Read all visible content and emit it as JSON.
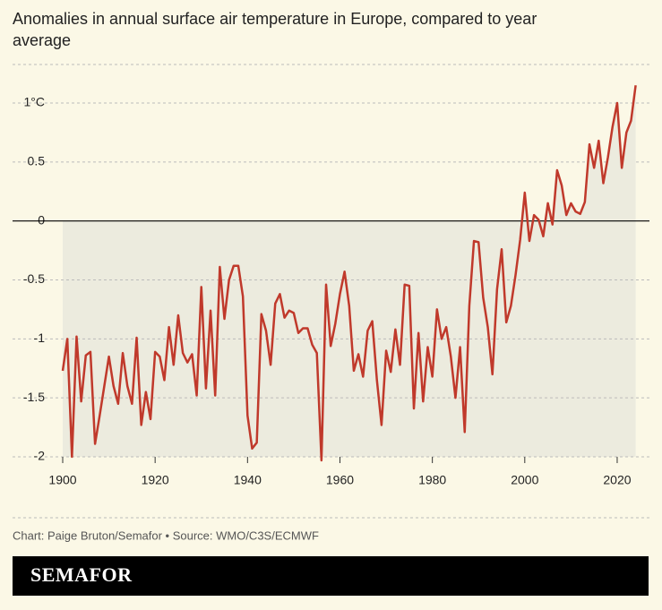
{
  "chart_data": {
    "type": "line",
    "title": "Anomalies in annual surface air temperature in Europe, compared to year",
    "subtitle": "average",
    "x": [
      1900,
      1901,
      1902,
      1903,
      1904,
      1905,
      1906,
      1907,
      1908,
      1909,
      1910,
      1911,
      1912,
      1913,
      1914,
      1915,
      1916,
      1917,
      1918,
      1919,
      1920,
      1921,
      1922,
      1923,
      1924,
      1925,
      1926,
      1927,
      1928,
      1929,
      1930,
      1931,
      1932,
      1933,
      1934,
      1935,
      1936,
      1937,
      1938,
      1939,
      1940,
      1941,
      1942,
      1943,
      1944,
      1945,
      1946,
      1947,
      1948,
      1949,
      1950,
      1951,
      1952,
      1953,
      1954,
      1955,
      1956,
      1957,
      1958,
      1959,
      1960,
      1961,
      1962,
      1963,
      1964,
      1965,
      1966,
      1967,
      1968,
      1969,
      1970,
      1971,
      1972,
      1973,
      1974,
      1975,
      1976,
      1977,
      1978,
      1979,
      1980,
      1981,
      1982,
      1983,
      1984,
      1985,
      1986,
      1987,
      1988,
      1989,
      1990,
      1991,
      1992,
      1993,
      1994,
      1995,
      1996,
      1997,
      1998,
      1999,
      2000,
      2001,
      2002,
      2003,
      2004,
      2005,
      2006,
      2007,
      2008,
      2009,
      2010,
      2011,
      2012,
      2013,
      2014,
      2015,
      2016,
      2017,
      2018,
      2019,
      2020,
      2021,
      2022,
      2023,
      2024
    ],
    "series": [
      {
        "color": "#c0392b",
        "values": [
          -1.27,
          -1.0,
          -2.0,
          -0.98,
          -1.53,
          -1.14,
          -1.11,
          -1.89,
          -1.65,
          -1.4,
          -1.15,
          -1.4,
          -1.55,
          -1.12,
          -1.4,
          -1.55,
          -0.99,
          -1.73,
          -1.45,
          -1.68,
          -1.11,
          -1.15,
          -1.35,
          -0.9,
          -1.22,
          -0.8,
          -1.12,
          -1.2,
          -1.13,
          -1.48,
          -0.56,
          -1.42,
          -0.76,
          -1.48,
          -0.39,
          -0.83,
          -0.5,
          -0.38,
          -0.38,
          -0.64,
          -1.65,
          -1.93,
          -1.88,
          -0.79,
          -0.93,
          -1.22,
          -0.7,
          -0.62,
          -0.82,
          -0.76,
          -0.78,
          -0.95,
          -0.91,
          -0.91,
          -1.05,
          -1.12,
          -2.03,
          -0.54,
          -1.06,
          -0.87,
          -0.62,
          -0.43,
          -0.72,
          -1.27,
          -1.13,
          -1.32,
          -0.93,
          -0.85,
          -1.35,
          -1.73,
          -1.1,
          -1.28,
          -0.92,
          -1.22,
          -0.54,
          -0.55,
          -1.59,
          -0.95,
          -1.53,
          -1.07,
          -1.32,
          -0.75,
          -1.0,
          -0.9,
          -1.15,
          -1.5,
          -1.07,
          -1.79,
          -0.72,
          -0.17,
          -0.18,
          -0.65,
          -0.9,
          -1.3,
          -0.58,
          -0.24,
          -0.86,
          -0.72,
          -0.46,
          -0.16,
          0.24,
          -0.17,
          0.05,
          0.01,
          -0.13,
          0.15,
          -0.03,
          0.43,
          0.3,
          0.05,
          0.15,
          0.08,
          0.06,
          0.16,
          0.65,
          0.45,
          0.68,
          0.32,
          0.54,
          0.8,
          1.0,
          0.45,
          0.75,
          0.85,
          1.15
        ]
      }
    ],
    "xlim": [
      1900,
      2024
    ],
    "xticks": [
      1900,
      1920,
      1940,
      1960,
      1980,
      2000,
      2020
    ],
    "ylim": [
      -2,
      1
    ],
    "yticks": [
      -2,
      -1.5,
      -1,
      -0.5,
      0,
      0.5,
      {
        "value": 1,
        "label": "1°C"
      }
    ],
    "grid": true,
    "source": "Chart: Paige Bruton/Semafor • Source: WMO/C3S/ECMWF",
    "logo": "SEMAFOR"
  }
}
